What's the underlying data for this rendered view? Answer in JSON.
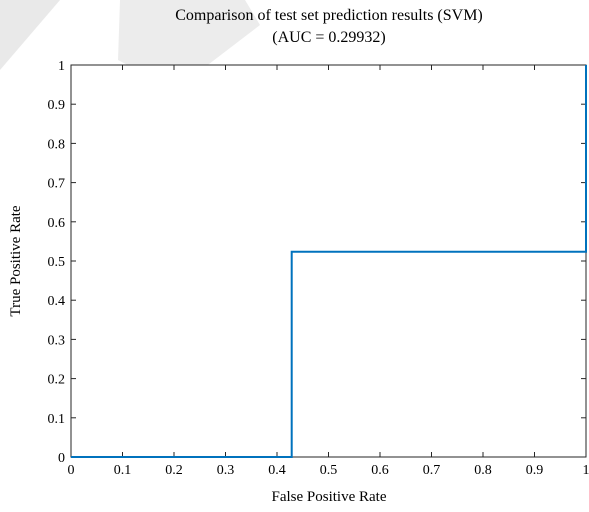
{
  "chart_data": {
    "type": "line",
    "title": "Comparison of test set prediction results (SVM)",
    "subtitle": "(AUC = 0.29932)",
    "xlabel": "False Positive Rate",
    "ylabel": "True Positive Rate",
    "xlim": [
      0,
      1
    ],
    "ylim": [
      0,
      1
    ],
    "xticks": [
      "0",
      "0.1",
      "0.2",
      "0.3",
      "0.4",
      "0.5",
      "0.6",
      "0.7",
      "0.8",
      "0.9",
      "1"
    ],
    "yticks": [
      "0",
      "0.1",
      "0.2",
      "0.3",
      "0.4",
      "0.5",
      "0.6",
      "0.7",
      "0.8",
      "0.9",
      "1"
    ],
    "grid": false,
    "series": [
      {
        "color": "#0072bd",
        "x": [
          0,
          0.4286,
          0.4286,
          1,
          1
        ],
        "y": [
          0,
          0,
          0.5238,
          0.5238,
          1
        ]
      }
    ]
  },
  "colors": {
    "curve": "#0072bd",
    "watermark": "#e6e6e6"
  }
}
